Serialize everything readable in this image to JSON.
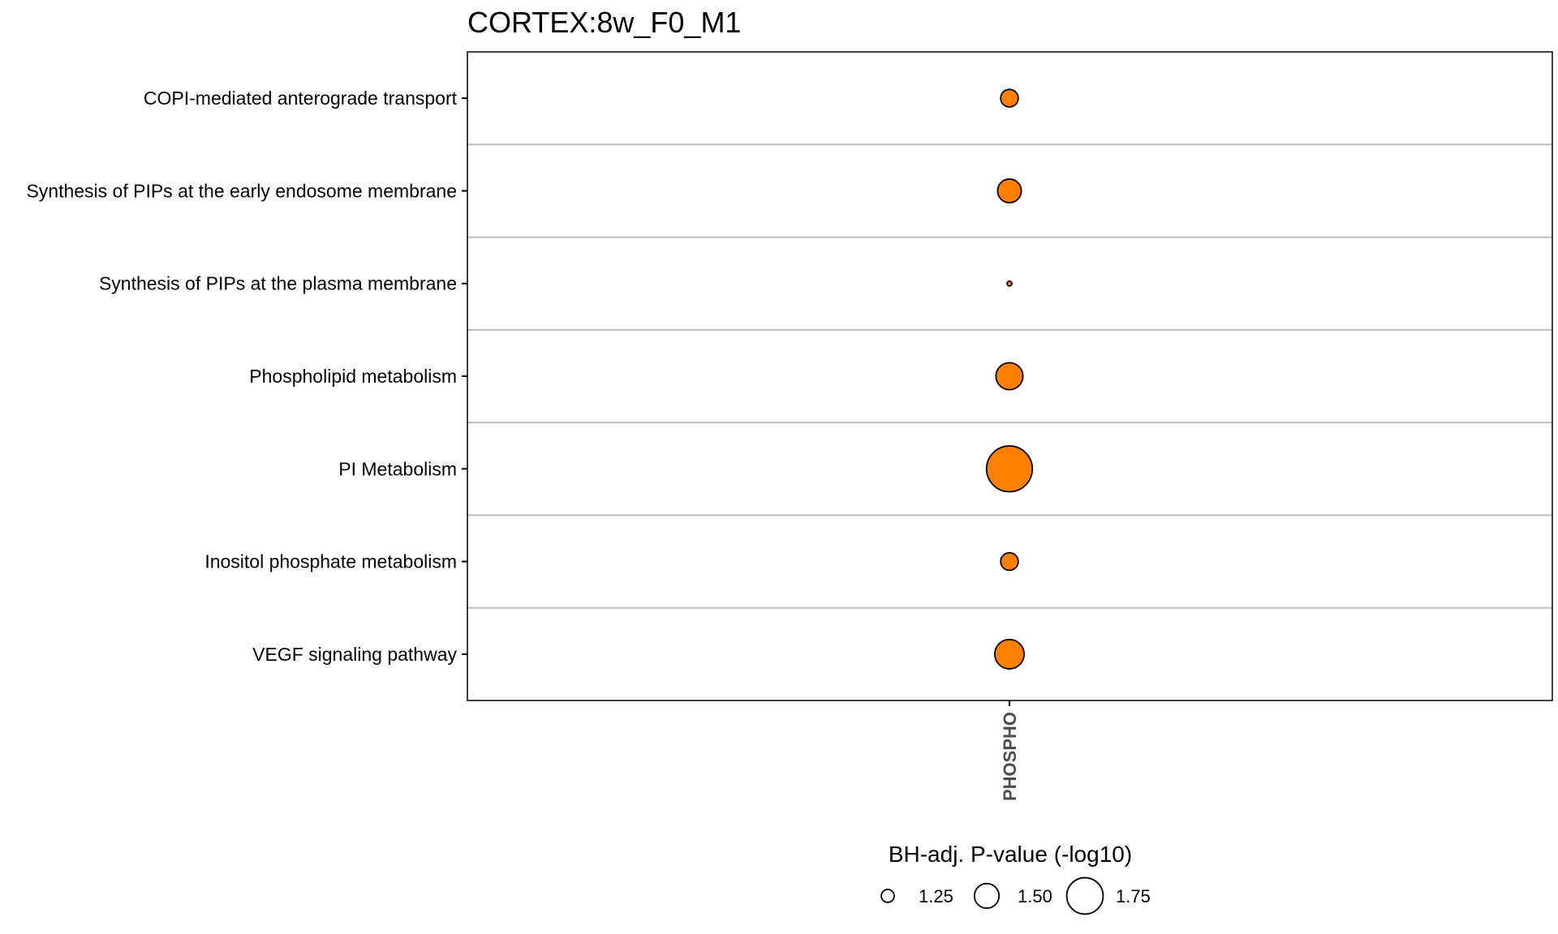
{
  "chart_data": {
    "type": "scatter",
    "title": "CORTEX:8w_F0_M1",
    "x": [
      "PHOSPHO"
    ],
    "categories": [
      "COPI-mediated anterograde transport",
      "Synthesis of PIPs at the early endosome membrane",
      "Synthesis of PIPs at the plasma membrane",
      "Phospholipid metabolism",
      "PI Metabolism",
      "Inositol phosphate metabolism",
      "VEGF signaling pathway"
    ],
    "series": [
      {
        "x": "PHOSPHO",
        "size_values": [
          1.35,
          1.48,
          1.08,
          1.55,
          1.95,
          1.35,
          1.6
        ]
      }
    ],
    "marker_color": "#FF7F00",
    "marker_edge": "#000000",
    "grid": "horizontal separators",
    "legend": {
      "title": "BH-adj. P-value (-log10)",
      "position": "bottom",
      "values": [
        1.25,
        1.5,
        1.75
      ],
      "labels": [
        "1.25",
        "1.50",
        "1.75"
      ]
    }
  }
}
